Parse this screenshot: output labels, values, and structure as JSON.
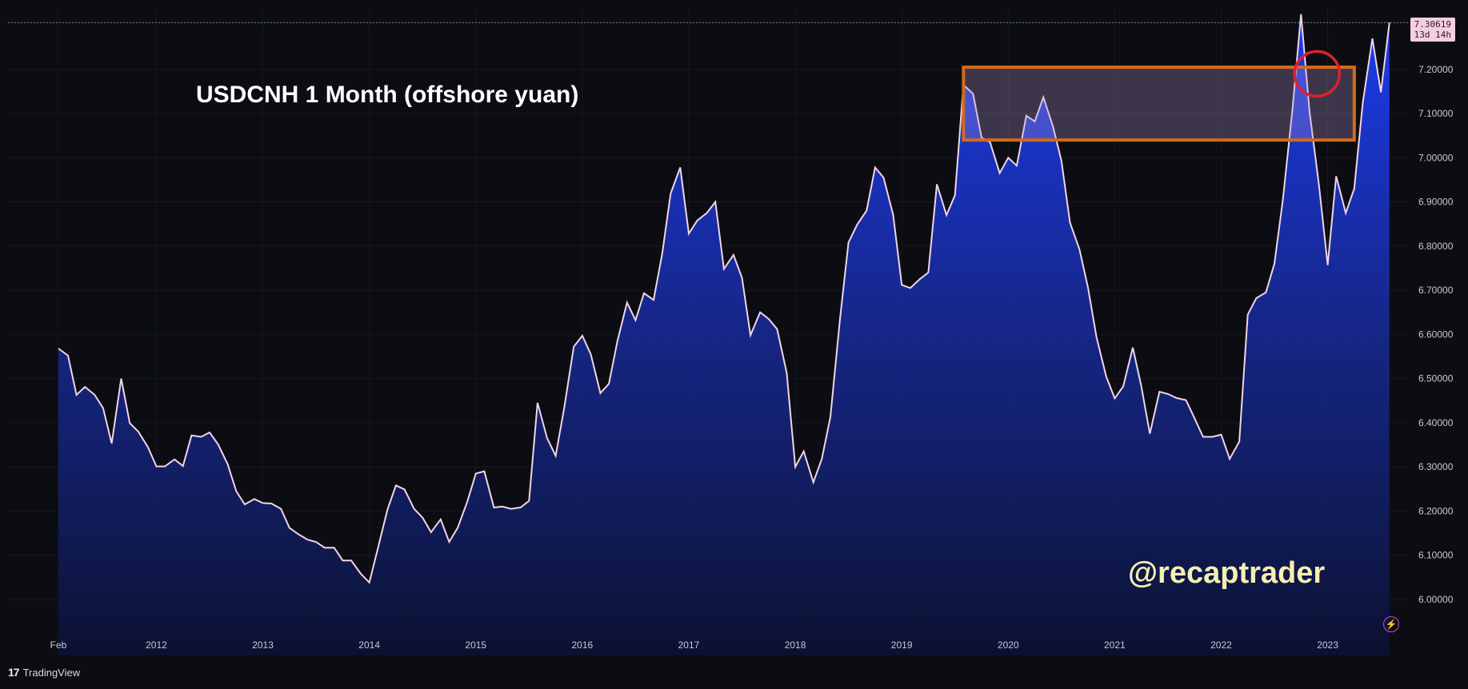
{
  "app": {
    "brand_logo": "17",
    "brand_name": "TradingView"
  },
  "annotations": {
    "title": "USDCNH 1 Month (offshore yuan)",
    "watermark": "@recaptrader"
  },
  "price_label": {
    "value": "7.30619",
    "countdown": "13d 14h"
  },
  "colors": {
    "background": "#0c0d12",
    "line": "#f2d4e6",
    "area_top": "#1c3cf0",
    "area_bottom": "#0c1130",
    "box_border": "#d46a1a",
    "circle": "#e0202e",
    "watermark": "#f6efb0"
  },
  "icons": {
    "alert": "lightning-bolt-icon"
  },
  "chart_data": {
    "type": "area",
    "series_name": "",
    "x_ticks": [
      "Feb",
      "2012",
      "2013",
      "2014",
      "2015",
      "2016",
      "2017",
      "2018",
      "2019",
      "2020",
      "2021",
      "2022",
      "2023"
    ],
    "y_ticks": [
      "7.20000",
      "7.10000",
      "7.00000",
      "6.90000",
      "6.80000",
      "6.70000",
      "6.60000",
      "6.50000",
      "6.40000",
      "6.30000",
      "6.20000",
      "6.10000",
      "6.00000"
    ],
    "ylim": [
      5.873,
      7.339
    ],
    "grid": true,
    "highlight_box": {
      "x_from": 2019.58,
      "x_to": 2023.25,
      "y_from": 7.04,
      "y_to": 7.205
    },
    "highlight_circle": {
      "x": 2022.9,
      "y": 7.19
    },
    "values": [
      [
        2011.08,
        6.568
      ],
      [
        2011.17,
        6.552
      ],
      [
        2011.25,
        6.463
      ],
      [
        2011.33,
        6.481
      ],
      [
        2011.42,
        6.463
      ],
      [
        2011.5,
        6.433
      ],
      [
        2011.58,
        6.353
      ],
      [
        2011.67,
        6.5
      ],
      [
        2011.75,
        6.399
      ],
      [
        2011.83,
        6.38
      ],
      [
        2011.92,
        6.345
      ],
      [
        2012.0,
        6.301
      ],
      [
        2012.08,
        6.301
      ],
      [
        2012.17,
        6.317
      ],
      [
        2012.25,
        6.302
      ],
      [
        2012.33,
        6.371
      ],
      [
        2012.42,
        6.368
      ],
      [
        2012.5,
        6.378
      ],
      [
        2012.58,
        6.351
      ],
      [
        2012.67,
        6.306
      ],
      [
        2012.75,
        6.245
      ],
      [
        2012.83,
        6.215
      ],
      [
        2012.92,
        6.227
      ],
      [
        2013.0,
        6.218
      ],
      [
        2013.08,
        6.217
      ],
      [
        2013.17,
        6.205
      ],
      [
        2013.25,
        6.162
      ],
      [
        2013.33,
        6.148
      ],
      [
        2013.42,
        6.135
      ],
      [
        2013.5,
        6.13
      ],
      [
        2013.58,
        6.117
      ],
      [
        2013.67,
        6.117
      ],
      [
        2013.75,
        6.088
      ],
      [
        2013.83,
        6.088
      ],
      [
        2013.92,
        6.058
      ],
      [
        2014.0,
        6.038
      ],
      [
        2014.08,
        6.115
      ],
      [
        2014.17,
        6.203
      ],
      [
        2014.25,
        6.258
      ],
      [
        2014.33,
        6.249
      ],
      [
        2014.42,
        6.205
      ],
      [
        2014.5,
        6.185
      ],
      [
        2014.58,
        6.152
      ],
      [
        2014.67,
        6.181
      ],
      [
        2014.75,
        6.13
      ],
      [
        2014.83,
        6.162
      ],
      [
        2014.92,
        6.221
      ],
      [
        2015.0,
        6.285
      ],
      [
        2015.08,
        6.29
      ],
      [
        2015.17,
        6.208
      ],
      [
        2015.25,
        6.21
      ],
      [
        2015.33,
        6.205
      ],
      [
        2015.42,
        6.208
      ],
      [
        2015.5,
        6.223
      ],
      [
        2015.58,
        6.445
      ],
      [
        2015.67,
        6.365
      ],
      [
        2015.75,
        6.325
      ],
      [
        2015.83,
        6.433
      ],
      [
        2015.92,
        6.572
      ],
      [
        2016.0,
        6.597
      ],
      [
        2016.08,
        6.555
      ],
      [
        2016.17,
        6.467
      ],
      [
        2016.25,
        6.488
      ],
      [
        2016.33,
        6.585
      ],
      [
        2016.42,
        6.672
      ],
      [
        2016.5,
        6.632
      ],
      [
        2016.58,
        6.693
      ],
      [
        2016.67,
        6.678
      ],
      [
        2016.75,
        6.782
      ],
      [
        2016.83,
        6.919
      ],
      [
        2016.92,
        6.978
      ],
      [
        2017.0,
        6.828
      ],
      [
        2017.08,
        6.858
      ],
      [
        2017.17,
        6.875
      ],
      [
        2017.25,
        6.9
      ],
      [
        2017.33,
        6.748
      ],
      [
        2017.42,
        6.78
      ],
      [
        2017.5,
        6.728
      ],
      [
        2017.58,
        6.598
      ],
      [
        2017.67,
        6.65
      ],
      [
        2017.75,
        6.635
      ],
      [
        2017.83,
        6.612
      ],
      [
        2017.92,
        6.513
      ],
      [
        2018.0,
        6.3
      ],
      [
        2018.08,
        6.335
      ],
      [
        2018.17,
        6.265
      ],
      [
        2018.25,
        6.318
      ],
      [
        2018.33,
        6.413
      ],
      [
        2018.42,
        6.635
      ],
      [
        2018.5,
        6.808
      ],
      [
        2018.58,
        6.848
      ],
      [
        2018.67,
        6.88
      ],
      [
        2018.75,
        6.978
      ],
      [
        2018.83,
        6.955
      ],
      [
        2018.92,
        6.87
      ],
      [
        2019.0,
        6.712
      ],
      [
        2019.08,
        6.705
      ],
      [
        2019.17,
        6.725
      ],
      [
        2019.25,
        6.74
      ],
      [
        2019.33,
        6.94
      ],
      [
        2019.42,
        6.87
      ],
      [
        2019.5,
        6.915
      ],
      [
        2019.58,
        7.165
      ],
      [
        2019.67,
        7.145
      ],
      [
        2019.75,
        7.045
      ],
      [
        2019.83,
        7.035
      ],
      [
        2019.92,
        6.965
      ],
      [
        2020.0,
        7.0
      ],
      [
        2020.08,
        6.982
      ],
      [
        2020.17,
        7.095
      ],
      [
        2020.25,
        7.082
      ],
      [
        2020.33,
        7.137
      ],
      [
        2020.42,
        7.071
      ],
      [
        2020.5,
        6.993
      ],
      [
        2020.58,
        6.853
      ],
      [
        2020.67,
        6.792
      ],
      [
        2020.75,
        6.705
      ],
      [
        2020.83,
        6.593
      ],
      [
        2020.92,
        6.505
      ],
      [
        2021.0,
        6.455
      ],
      [
        2021.08,
        6.482
      ],
      [
        2021.17,
        6.57
      ],
      [
        2021.25,
        6.483
      ],
      [
        2021.33,
        6.375
      ],
      [
        2021.42,
        6.47
      ],
      [
        2021.5,
        6.465
      ],
      [
        2021.58,
        6.456
      ],
      [
        2021.67,
        6.451
      ],
      [
        2021.75,
        6.41
      ],
      [
        2021.83,
        6.368
      ],
      [
        2021.92,
        6.368
      ],
      [
        2022.0,
        6.373
      ],
      [
        2022.08,
        6.318
      ],
      [
        2022.17,
        6.357
      ],
      [
        2022.25,
        6.645
      ],
      [
        2022.33,
        6.682
      ],
      [
        2022.42,
        6.695
      ],
      [
        2022.5,
        6.76
      ],
      [
        2022.58,
        6.905
      ],
      [
        2022.67,
        7.11
      ],
      [
        2022.75,
        7.325
      ],
      [
        2022.83,
        7.105
      ],
      [
        2022.92,
        6.935
      ],
      [
        2023.0,
        6.757
      ],
      [
        2023.08,
        6.958
      ],
      [
        2023.17,
        6.875
      ],
      [
        2023.25,
        6.93
      ],
      [
        2023.33,
        7.125
      ],
      [
        2023.42,
        7.27
      ],
      [
        2023.5,
        7.148
      ],
      [
        2023.58,
        7.306
      ]
    ]
  }
}
